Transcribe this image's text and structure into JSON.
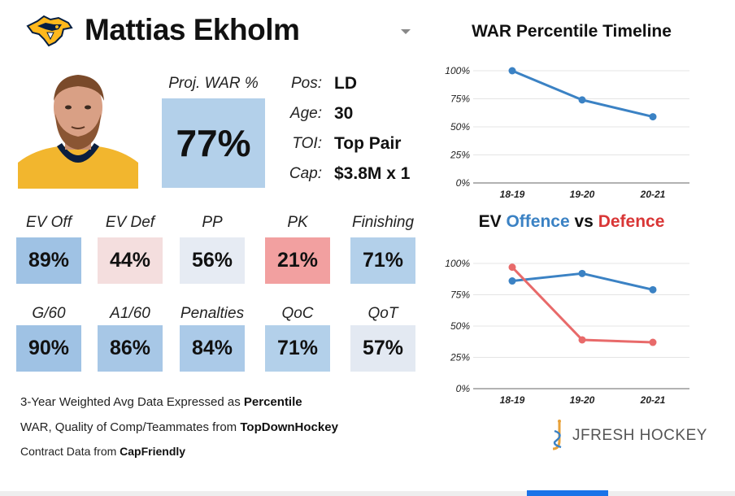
{
  "player": {
    "name": "Mattias Ekholm",
    "team_logo_icon": "nashville-predators-logo-icon"
  },
  "proj_war": {
    "label": "Proj. WAR %",
    "value": "77%"
  },
  "info": [
    {
      "label": "Pos:",
      "value": "LD"
    },
    {
      "label": "Age:",
      "value": "30"
    },
    {
      "label": "TOI:",
      "value": "Top Pair"
    },
    {
      "label": "Cap:",
      "value": "$3.8M x 1"
    }
  ],
  "stats_row1": [
    {
      "label": "EV Off",
      "value": "89%",
      "color": "#9fc2e4"
    },
    {
      "label": "EV Def",
      "value": "44%",
      "color": "#f4dede"
    },
    {
      "label": "PP",
      "value": "56%",
      "color": "#e6ebf3"
    },
    {
      "label": "PK",
      "value": "21%",
      "color": "#f2a0a0"
    },
    {
      "label": "Finishing",
      "value": "71%",
      "color": "#b3d0ea"
    }
  ],
  "stats_row2": [
    {
      "label": "G/60",
      "value": "90%",
      "color": "#9fc2e4"
    },
    {
      "label": "A1/60",
      "value": "86%",
      "color": "#a7c7e6"
    },
    {
      "label": "Penalties",
      "value": "84%",
      "color": "#abcae8"
    },
    {
      "label": "QoC",
      "value": "71%",
      "color": "#b3d0ea"
    },
    {
      "label": "QoT",
      "value": "57%",
      "color": "#e3e9f2"
    }
  ],
  "footer": {
    "line1_prefix": "3-Year Weighted Avg Data Expressed as ",
    "line1_bold": "Percentile",
    "line2_prefix": "WAR, Quality of Comp/Teammates from ",
    "line2_bold": "TopDownHockey",
    "line3_prefix": "Contract Data from ",
    "line3_bold": "CapFriendly"
  },
  "brand": {
    "text": "JFRESH HOCKEY",
    "icon": "jfresh-logo-icon"
  },
  "colors": {
    "blue": "#3b82c4",
    "red": "#e86a6a"
  },
  "chart_data": [
    {
      "type": "line",
      "title": "WAR Percentile Timeline",
      "categories": [
        "18-19",
        "19-20",
        "20-21"
      ],
      "series": [
        {
          "values": [
            100,
            74,
            59
          ],
          "color": "#3b82c4"
        }
      ],
      "ylim": [
        0,
        100
      ],
      "yticks": [
        "0%",
        "25%",
        "50%",
        "75%",
        "100%"
      ],
      "grid": true
    },
    {
      "type": "line",
      "title_parts": [
        "EV ",
        "Offence",
        " vs ",
        "Defence"
      ],
      "categories": [
        "18-19",
        "19-20",
        "20-21"
      ],
      "series": [
        {
          "name": "Offence",
          "values": [
            86,
            92,
            79
          ],
          "color": "#3b82c4"
        },
        {
          "name": "Defence",
          "values": [
            97,
            39,
            37
          ],
          "color": "#e86a6a"
        }
      ],
      "ylim": [
        0,
        100
      ],
      "yticks": [
        "0%",
        "25%",
        "50%",
        "75%",
        "100%"
      ],
      "grid": true
    }
  ]
}
